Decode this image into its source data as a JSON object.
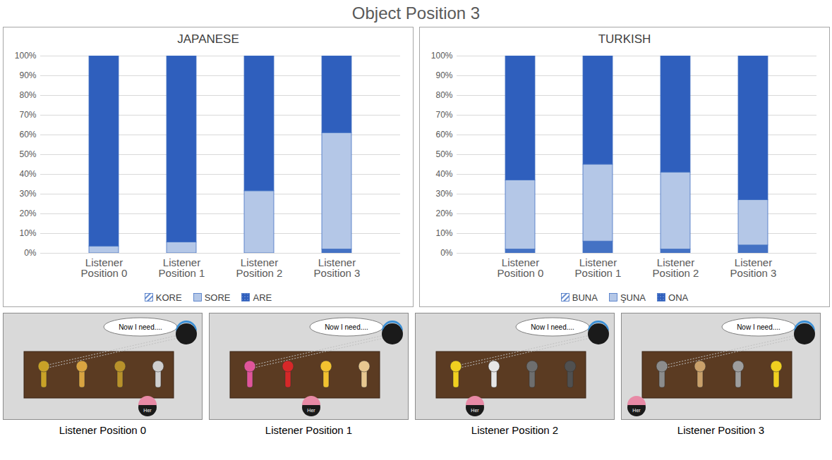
{
  "title": "Object Position 3",
  "chart_data": [
    {
      "type": "bar",
      "stacked": true,
      "title": "JAPANESE",
      "categories": [
        "Listener Position 0",
        "Listener Position 1",
        "Listener Position 2",
        "Listener Position 3"
      ],
      "series": [
        {
          "name": "KORE",
          "color": "#4472c4",
          "values": [
            0,
            0,
            0,
            2
          ]
        },
        {
          "name": "SORE",
          "color": "#b4c7e7",
          "values": [
            3.5,
            5.5,
            31.5,
            59
          ]
        },
        {
          "name": "ARE",
          "color": "#2f5fbd",
          "values": [
            96.5,
            94.5,
            68.5,
            39
          ]
        }
      ],
      "ylim": [
        0,
        100
      ],
      "yticks": [
        {
          "value": 0,
          "label": "0%"
        },
        {
          "value": 10,
          "label": "10%"
        },
        {
          "value": 20,
          "label": "20%"
        },
        {
          "value": 30,
          "label": "30%"
        },
        {
          "value": 40,
          "label": "40%"
        },
        {
          "value": 50,
          "label": "50%"
        },
        {
          "value": 60,
          "label": "60%"
        },
        {
          "value": 70,
          "label": "70%"
        },
        {
          "value": 80,
          "label": "80%"
        },
        {
          "value": 90,
          "label": "90%"
        },
        {
          "value": 100,
          "label": "100%"
        }
      ],
      "grid": true,
      "legend": "bottom"
    },
    {
      "type": "bar",
      "stacked": true,
      "title": "TURKISH",
      "categories": [
        "Listener Position 0",
        "Listener Position 1",
        "Listener Position 2",
        "Listener Position 3"
      ],
      "series": [
        {
          "name": "BUNA",
          "color": "#4472c4",
          "values": [
            2,
            6,
            2,
            4
          ]
        },
        {
          "name": "ŞUNA",
          "color": "#b4c7e7",
          "values": [
            35,
            39,
            39,
            23
          ]
        },
        {
          "name": "ONA",
          "color": "#2f5fbd",
          "values": [
            63,
            55,
            59,
            73
          ]
        }
      ],
      "ylim": [
        0,
        100
      ],
      "yticks": [
        {
          "value": 0,
          "label": "0%"
        },
        {
          "value": 10,
          "label": "10%"
        },
        {
          "value": 20,
          "label": "20%"
        },
        {
          "value": 30,
          "label": "30%"
        },
        {
          "value": 40,
          "label": "40%"
        },
        {
          "value": 50,
          "label": "50%"
        },
        {
          "value": 60,
          "label": "60%"
        },
        {
          "value": 70,
          "label": "70%"
        },
        {
          "value": 80,
          "label": "80%"
        },
        {
          "value": 90,
          "label": "90%"
        },
        {
          "value": 100,
          "label": "100%"
        }
      ],
      "grid": true,
      "legend": "bottom"
    }
  ],
  "scenes": [
    {
      "label": "Listener Position 0",
      "speech": "Now I need....",
      "listener": "Her"
    },
    {
      "label": "Listener Position 1",
      "speech": "Now I need....",
      "listener": "Her"
    },
    {
      "label": "Listener Position 2",
      "speech": "Now I need....",
      "listener": "Her"
    },
    {
      "label": "Listener Position 3",
      "speech": "Now I need....",
      "listener": "Her"
    }
  ]
}
